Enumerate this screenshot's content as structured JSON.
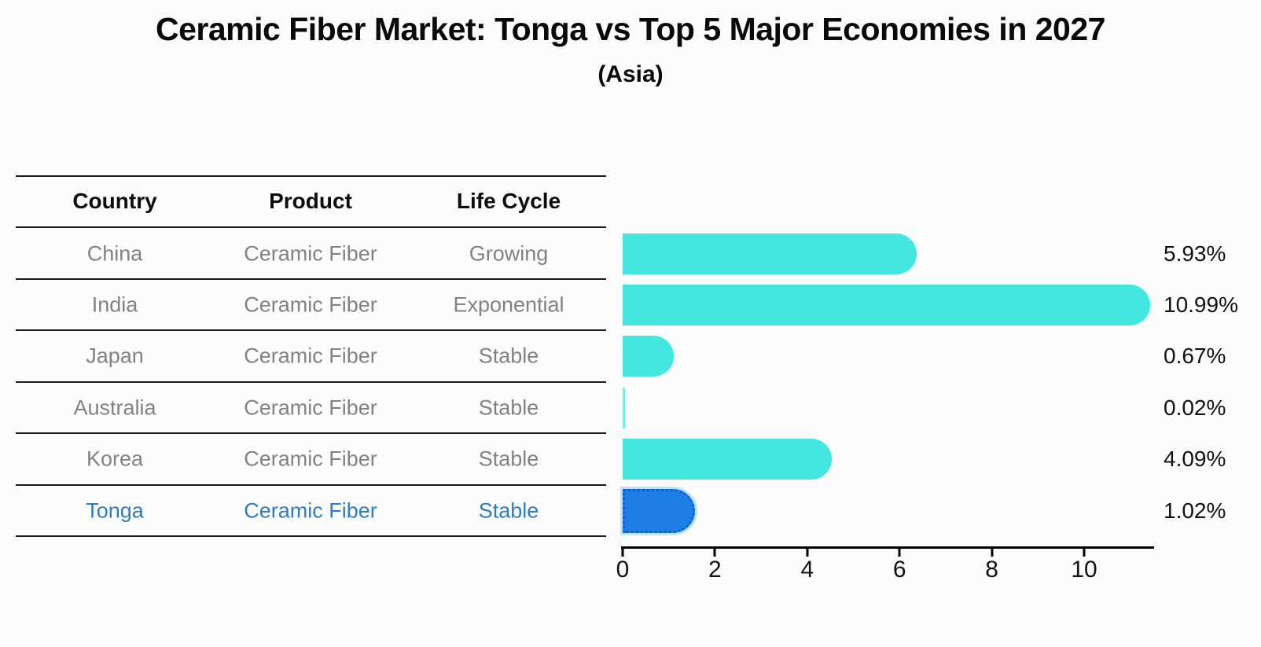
{
  "title": "Ceramic Fiber Market: Tonga vs Top 5 Major Economies in 2027",
  "subtitle": "(Asia)",
  "table": {
    "headers": [
      "Country",
      "Product",
      "Life Cycle"
    ],
    "rows": [
      {
        "country": "China",
        "product": "Ceramic Fiber",
        "life_cycle": "Growing",
        "highlight": false
      },
      {
        "country": "India",
        "product": "Ceramic Fiber",
        "life_cycle": "Exponential",
        "highlight": false
      },
      {
        "country": "Japan",
        "product": "Ceramic Fiber",
        "life_cycle": "Stable",
        "highlight": false
      },
      {
        "country": "Australia",
        "product": "Ceramic Fiber",
        "life_cycle": "Stable",
        "highlight": false
      },
      {
        "country": "Korea",
        "product": "Ceramic Fiber",
        "life_cycle": "Stable",
        "highlight": false
      },
      {
        "country": "Tonga",
        "product": "Ceramic Fiber",
        "life_cycle": "Stable",
        "highlight": true
      }
    ]
  },
  "chart_data": {
    "type": "bar",
    "orientation": "horizontal",
    "categories": [
      "China",
      "India",
      "Japan",
      "Australia",
      "Korea",
      "Tonga"
    ],
    "values": [
      5.93,
      10.99,
      0.67,
      0.02,
      4.09,
      1.02
    ],
    "value_labels": [
      "5.93%",
      "10.99%",
      "0.67%",
      "0.02%",
      "4.09%",
      "1.02%"
    ],
    "x_ticks": [
      0,
      2,
      4,
      6,
      8,
      10
    ],
    "xlim": [
      0,
      11.5
    ],
    "grid": false,
    "legend": false,
    "bar_color": "#44E6E0",
    "highlight_bar_color": "#1E7EE4",
    "highlight_text_color": "#2E7CC9",
    "highlight_index": 5
  }
}
